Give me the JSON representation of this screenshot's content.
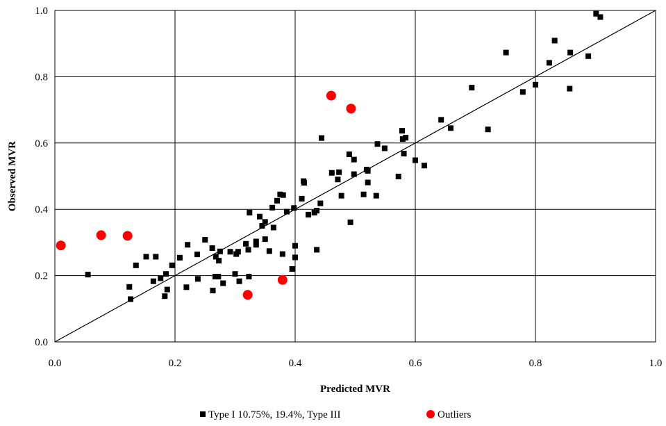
{
  "chart_data": {
    "type": "scatter",
    "title": "",
    "xlabel": "Predicted MVR",
    "ylabel": "Observed MVR",
    "xlim": [
      0,
      1
    ],
    "ylim": [
      0,
      1
    ],
    "grid": true,
    "legend_position": "bottom",
    "x_ticks": [
      "0.0",
      "0.2",
      "0.4",
      "0.6",
      "0.8",
      "1.0"
    ],
    "y_ticks": [
      "0.0",
      "0.2",
      "0.4",
      "0.6",
      "0.8",
      "1.0"
    ],
    "reference_line": {
      "from": [
        0,
        0
      ],
      "to": [
        1,
        1
      ]
    },
    "series": [
      {
        "name": "Type I 10.75%, 19.4%, Type III",
        "marker": "square",
        "color": "#000000",
        "points": [
          [
            0.055,
            0.203
          ],
          [
            0.124,
            0.166
          ],
          [
            0.126,
            0.129
          ],
          [
            0.135,
            0.231
          ],
          [
            0.152,
            0.257
          ],
          [
            0.164,
            0.183
          ],
          [
            0.168,
            0.257
          ],
          [
            0.176,
            0.192
          ],
          [
            0.183,
            0.138
          ],
          [
            0.185,
            0.205
          ],
          [
            0.187,
            0.158
          ],
          [
            0.195,
            0.231
          ],
          [
            0.208,
            0.254
          ],
          [
            0.219,
            0.165
          ],
          [
            0.221,
            0.293
          ],
          [
            0.237,
            0.264
          ],
          [
            0.238,
            0.19
          ],
          [
            0.25,
            0.308
          ],
          [
            0.262,
            0.283
          ],
          [
            0.263,
            0.155
          ],
          [
            0.267,
            0.197
          ],
          [
            0.268,
            0.257
          ],
          [
            0.272,
            0.197
          ],
          [
            0.273,
            0.245
          ],
          [
            0.275,
            0.273
          ],
          [
            0.28,
            0.177
          ],
          [
            0.292,
            0.272
          ],
          [
            0.3,
            0.205
          ],
          [
            0.302,
            0.265
          ],
          [
            0.305,
            0.272
          ],
          [
            0.307,
            0.183
          ],
          [
            0.318,
            0.296
          ],
          [
            0.322,
            0.278
          ],
          [
            0.323,
            0.197
          ],
          [
            0.324,
            0.39
          ],
          [
            0.335,
            0.293
          ],
          [
            0.335,
            0.303
          ],
          [
            0.341,
            0.378
          ],
          [
            0.345,
            0.35
          ],
          [
            0.35,
            0.362
          ],
          [
            0.35,
            0.31
          ],
          [
            0.357,
            0.274
          ],
          [
            0.362,
            0.405
          ],
          [
            0.364,
            0.345
          ],
          [
            0.37,
            0.426
          ],
          [
            0.375,
            0.445
          ],
          [
            0.379,
            0.265
          ],
          [
            0.38,
            0.443
          ],
          [
            0.386,
            0.393
          ],
          [
            0.395,
            0.22
          ],
          [
            0.398,
            0.404
          ],
          [
            0.4,
            0.29
          ],
          [
            0.4,
            0.255
          ],
          [
            0.411,
            0.432
          ],
          [
            0.414,
            0.485
          ],
          [
            0.415,
            0.48
          ],
          [
            0.422,
            0.384
          ],
          [
            0.432,
            0.39
          ],
          [
            0.436,
            0.396
          ],
          [
            0.436,
            0.278
          ],
          [
            0.442,
            0.418
          ],
          [
            0.444,
            0.615
          ],
          [
            0.461,
            0.51
          ],
          [
            0.471,
            0.49
          ],
          [
            0.473,
            0.512
          ],
          [
            0.477,
            0.441
          ],
          [
            0.49,
            0.566
          ],
          [
            0.492,
            0.361
          ],
          [
            0.498,
            0.506
          ],
          [
            0.498,
            0.55
          ],
          [
            0.514,
            0.445
          ],
          [
            0.519,
            0.52
          ],
          [
            0.521,
            0.516
          ],
          [
            0.521,
            0.481
          ],
          [
            0.535,
            0.441
          ],
          [
            0.537,
            0.597
          ],
          [
            0.549,
            0.584
          ],
          [
            0.572,
            0.499
          ],
          [
            0.578,
            0.637
          ],
          [
            0.579,
            0.612
          ],
          [
            0.581,
            0.568
          ],
          [
            0.584,
            0.616
          ],
          [
            0.6,
            0.548
          ],
          [
            0.615,
            0.532
          ],
          [
            0.643,
            0.67
          ],
          [
            0.659,
            0.645
          ],
          [
            0.694,
            0.767
          ],
          [
            0.721,
            0.641
          ],
          [
            0.751,
            0.873
          ],
          [
            0.779,
            0.754
          ],
          [
            0.8,
            0.776
          ],
          [
            0.823,
            0.842
          ],
          [
            0.832,
            0.909
          ],
          [
            0.857,
            0.764
          ],
          [
            0.858,
            0.873
          ],
          [
            0.888,
            0.862
          ],
          [
            0.901,
            0.99
          ],
          [
            0.908,
            0.98
          ]
        ]
      },
      {
        "name": "Outliers",
        "marker": "circle",
        "color": "#ff0000",
        "points": [
          [
            0.01,
            0.291
          ],
          [
            0.077,
            0.322
          ],
          [
            0.121,
            0.32
          ],
          [
            0.321,
            0.142
          ],
          [
            0.379,
            0.187
          ],
          [
            0.46,
            0.743
          ],
          [
            0.493,
            0.704
          ]
        ]
      }
    ]
  }
}
